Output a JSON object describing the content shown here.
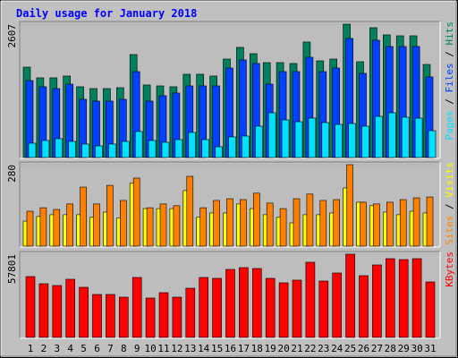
{
  "chart_data": [
    {
      "type": "bar",
      "title": "Daily usage for January 2018",
      "categories": [
        "1",
        "2",
        "3",
        "4",
        "5",
        "6",
        "7",
        "8",
        "9",
        "10",
        "11",
        "12",
        "13",
        "14",
        "15",
        "16",
        "17",
        "18",
        "19",
        "20",
        "21",
        "22",
        "23",
        "24",
        "25",
        "26",
        "27",
        "28",
        "29",
        "30",
        "31"
      ],
      "category_colors": [
        "#000000",
        "#000000",
        "#000000",
        "#000000",
        "#000000",
        "#008040",
        "#008040",
        "#000000",
        "#000000",
        "#000000",
        "#000000",
        "#000000",
        "#008040",
        "#008040",
        "#000000",
        "#000000",
        "#000000",
        "#000000",
        "#000000",
        "#008040",
        "#008040",
        "#000000",
        "#000000",
        "#000000",
        "#000000",
        "#000000",
        "#008040",
        "#008040",
        "#000000",
        "#000000",
        "#000000"
      ],
      "legend_separator": " / ",
      "ylim": [
        0,
        2607
      ],
      "yticks": [
        2607
      ],
      "series": [
        {
          "name": "Hits",
          "color": "#00805c",
          "values": [
            1767,
            1558,
            1558,
            1593,
            1383,
            1348,
            1348,
            1365,
            2013,
            1418,
            1400,
            1383,
            1628,
            1628,
            1593,
            1925,
            2153,
            2030,
            1855,
            1855,
            1838,
            2258,
            1890,
            1925,
            2607,
            1873,
            2538,
            2398,
            2380,
            2380,
            1820
          ]
        },
        {
          "name": "Files",
          "color": "#0040ff",
          "values": [
            1505,
            1383,
            1348,
            1435,
            1138,
            1103,
            1103,
            1138,
            1680,
            1103,
            1208,
            1260,
            1400,
            1400,
            1400,
            1750,
            1908,
            1838,
            1435,
            1680,
            1680,
            1960,
            1680,
            1750,
            2328,
            1645,
            2293,
            2170,
            2170,
            2170,
            1575
          ]
        },
        {
          "name": "Pages",
          "color": "#00e0ff",
          "values": [
            280,
            333,
            368,
            315,
            263,
            228,
            263,
            315,
            508,
            333,
            298,
            350,
            490,
            350,
            210,
            403,
            420,
            613,
            875,
            735,
            700,
            770,
            683,
            648,
            665,
            613,
            805,
            875,
            788,
            770,
            525
          ]
        }
      ]
    },
    {
      "type": "bar",
      "legend_separator": " / ",
      "ylim": [
        0,
        280
      ],
      "yticks": [
        280
      ],
      "series": [
        {
          "name": "Visits",
          "color": "#ffff00",
          "values": [
            86,
            102,
            108,
            108,
            108,
            99,
            117,
            96,
            216,
            129,
            129,
            129,
            191,
            99,
            114,
            114,
            145,
            129,
            108,
            99,
            80,
            108,
            108,
            114,
            200,
            151,
            139,
            117,
            108,
            120,
            114
          ]
        },
        {
          "name": "Sites",
          "color": "#ff8000",
          "values": [
            120,
            132,
            126,
            145,
            203,
            145,
            209,
            157,
            234,
            132,
            145,
            139,
            240,
            132,
            157,
            163,
            160,
            182,
            148,
            129,
            163,
            179,
            157,
            160,
            280,
            151,
            145,
            151,
            160,
            166,
            169
          ]
        }
      ]
    },
    {
      "type": "bar",
      "ylim": [
        0,
        57801
      ],
      "yticks": [
        57801
      ],
      "series": [
        {
          "name": "KBytes",
          "color": "#ff0000",
          "values": [
            42262,
            37290,
            36047,
            40397,
            34804,
            29832,
            29832,
            27968,
            41640,
            27346,
            31075,
            27968,
            34183,
            41640,
            41019,
            47234,
            48477,
            47855,
            41019,
            37911,
            39776,
            52206,
            39155,
            44748,
            57801,
            42883,
            50341,
            54692,
            54070,
            54692,
            38533
          ]
        }
      ]
    }
  ]
}
